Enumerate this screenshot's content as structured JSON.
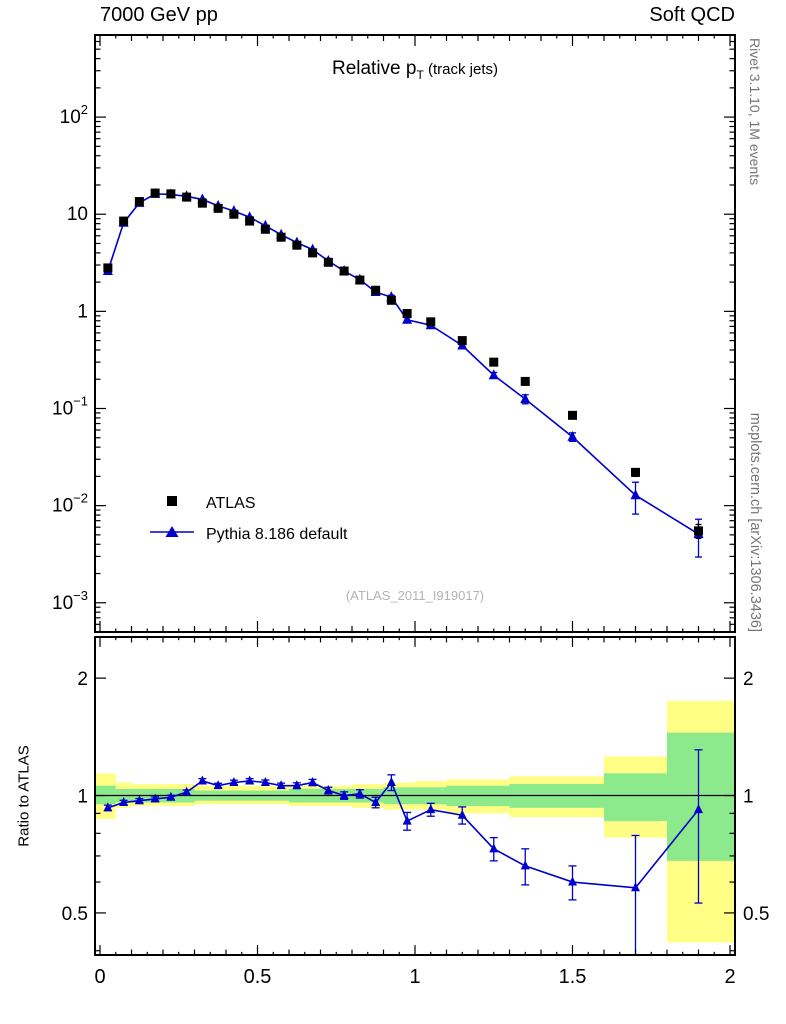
{
  "header": {
    "left": "7000 GeV pp",
    "right": "Soft QCD"
  },
  "side_texts": {
    "rivet": "Rivet 3.1.10,  1M events",
    "mcplots": "mcplots.cern.ch [arXiv:1306.3436]"
  },
  "main_panel": {
    "title_prefix": "Relative p",
    "title_sub": "T",
    "title_suffix": " (track jets)",
    "watermark": "(ATLAS_2011_I919017)",
    "legend": [
      {
        "label": "ATLAS",
        "marker": "square"
      },
      {
        "label": "Pythia 8.186 default",
        "marker": "triangle-line"
      }
    ]
  },
  "ratio_panel": {
    "ylabel": "Ratio to ATLAS"
  },
  "colors": {
    "atlas": "#000000",
    "pythia": "#0000cc",
    "band_outer": "#ffff85",
    "band_inner": "#8ce98c",
    "frame": "#000000",
    "watermark": "#b3b3b3",
    "side_text": "#757575"
  },
  "chart_data": {
    "type": "line",
    "title": "Relative pT (track jets)",
    "xlabel": "",
    "ylabel_main": "",
    "ylabel_ratio": "Ratio to ATLAS",
    "xlim": [
      0,
      2
    ],
    "main_ylog": true,
    "main_ylim": [
      0.0005,
      700
    ],
    "ratio_ylog": true,
    "ratio_ylim": [
      0.39,
      2.55
    ],
    "x_tick_labels": [
      {
        "v": 0,
        "label": "0"
      },
      {
        "v": 0.5,
        "label": "0.5"
      },
      {
        "v": 1,
        "label": "1"
      },
      {
        "v": 1.5,
        "label": "1.5"
      },
      {
        "v": 2,
        "label": "2"
      }
    ],
    "main_y_ticks": [
      {
        "v": 100,
        "base": "10",
        "exp": "2"
      },
      {
        "v": 10,
        "base": "10",
        "exp": ""
      },
      {
        "v": 1,
        "base": "1",
        "exp": ""
      },
      {
        "v": 0.1,
        "base": "10",
        "exp": "−1"
      },
      {
        "v": 0.01,
        "base": "10",
        "exp": "−2"
      },
      {
        "v": 0.001,
        "base": "10",
        "exp": "−3"
      }
    ],
    "ratio_y_ticks": [
      {
        "v": 2,
        "label": "2"
      },
      {
        "v": 1,
        "label": "1"
      },
      {
        "v": 0.5,
        "label": "0.5"
      }
    ],
    "ratio_reference": 1,
    "x": [
      0.025,
      0.075,
      0.125,
      0.175,
      0.225,
      0.275,
      0.325,
      0.375,
      0.425,
      0.475,
      0.525,
      0.575,
      0.625,
      0.675,
      0.725,
      0.775,
      0.825,
      0.875,
      0.925,
      0.975,
      1.05,
      1.15,
      1.25,
      1.35,
      1.5,
      1.7,
      1.9
    ],
    "series": [
      {
        "name": "ATLAS",
        "marker": "square",
        "color": "#000000",
        "y": [
          2.8,
          8.5,
          13.5,
          16.5,
          16.2,
          15.0,
          13.0,
          11.5,
          10.0,
          8.5,
          7.0,
          5.8,
          4.8,
          4.0,
          3.2,
          2.6,
          2.1,
          1.65,
          1.3,
          0.95,
          0.78,
          0.5,
          0.3,
          0.19,
          0.085,
          0.022,
          0.0055
        ],
        "yerr": [
          0.08,
          0.25,
          0.4,
          0.5,
          0.48,
          0.45,
          0.39,
          0.34,
          0.3,
          0.25,
          0.21,
          0.17,
          0.14,
          0.12,
          0.1,
          0.08,
          0.06,
          0.05,
          0.04,
          0.03,
          0.025,
          0.018,
          0.012,
          0.009,
          0.005,
          0.002,
          0.0009
        ]
      },
      {
        "name": "Pythia 8.186 default",
        "marker": "triangle",
        "color": "#0000cc",
        "y": [
          2.6,
          8.16,
          13.1,
          16.2,
          16.0,
          15.3,
          14.2,
          12.2,
          10.8,
          9.3,
          7.6,
          6.15,
          5.1,
          4.32,
          3.3,
          2.6,
          2.12,
          1.58,
          1.4,
          0.82,
          0.72,
          0.445,
          0.22,
          0.125,
          0.051,
          0.0128,
          0.0051
        ],
        "ratio": [
          0.93,
          0.96,
          0.97,
          0.98,
          0.99,
          1.02,
          1.09,
          1.06,
          1.08,
          1.09,
          1.08,
          1.06,
          1.06,
          1.08,
          1.03,
          1.0,
          1.01,
          0.96,
          1.08,
          0.86,
          0.92,
          0.89,
          0.73,
          0.66,
          0.6,
          0.58,
          0.92
        ],
        "ratio_err": [
          0.015,
          0.012,
          0.012,
          0.012,
          0.012,
          0.013,
          0.015,
          0.015,
          0.015,
          0.015,
          0.016,
          0.016,
          0.018,
          0.02,
          0.02,
          0.022,
          0.025,
          0.03,
          0.05,
          0.045,
          0.035,
          0.045,
          0.05,
          0.07,
          0.06,
          0.21,
          0.39
        ]
      }
    ],
    "ratio_bands": {
      "outer": [
        [
          0.0,
          0.05,
          0.87,
          1.14
        ],
        [
          0.05,
          0.1,
          0.93,
          1.08
        ],
        [
          0.1,
          0.3,
          0.94,
          1.07
        ],
        [
          0.3,
          0.6,
          0.95,
          1.06
        ],
        [
          0.6,
          0.8,
          0.94,
          1.06
        ],
        [
          0.8,
          0.9,
          0.93,
          1.07
        ],
        [
          0.9,
          1.0,
          0.92,
          1.08
        ],
        [
          1.0,
          1.1,
          0.92,
          1.09
        ],
        [
          1.1,
          1.3,
          0.9,
          1.1
        ],
        [
          1.3,
          1.6,
          0.88,
          1.12
        ],
        [
          1.6,
          1.8,
          0.78,
          1.26
        ],
        [
          1.8,
          2.0,
          0.42,
          1.75
        ]
      ],
      "inner": [
        [
          0.0,
          0.05,
          0.95,
          1.06
        ],
        [
          0.05,
          0.3,
          0.96,
          1.04
        ],
        [
          0.3,
          0.6,
          0.97,
          1.03
        ],
        [
          0.6,
          0.9,
          0.96,
          1.04
        ],
        [
          0.9,
          1.1,
          0.95,
          1.05
        ],
        [
          1.1,
          1.3,
          0.94,
          1.06
        ],
        [
          1.3,
          1.6,
          0.93,
          1.07
        ],
        [
          1.6,
          1.8,
          0.86,
          1.14
        ],
        [
          1.8,
          2.0,
          0.68,
          1.45
        ]
      ]
    }
  }
}
